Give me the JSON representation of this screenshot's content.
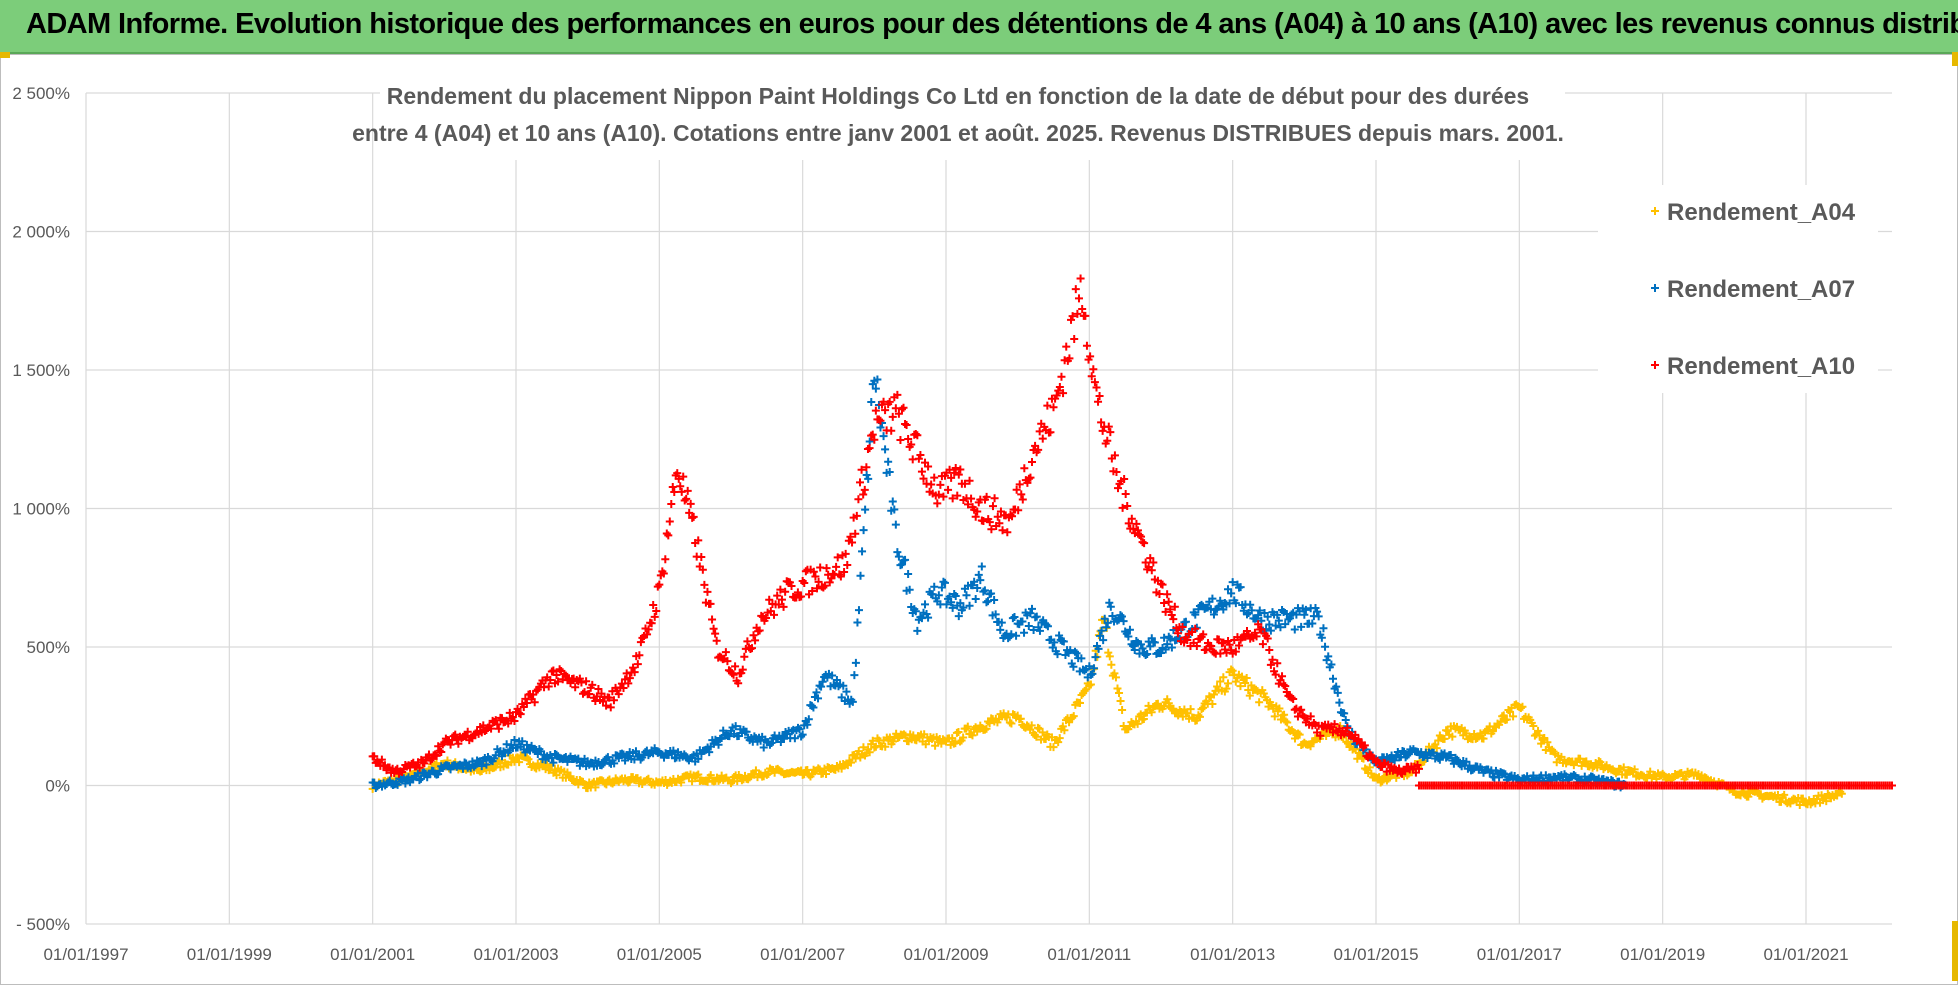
{
  "header": {
    "title": "ADAM Informe. Evolution historique des performances en euros pour des détentions de 4 ans (A04) à 10 ans (A10) avec les revenus connus distribués"
  },
  "chart_data": {
    "type": "scatter",
    "title_lines": [
      "Rendement du placement Nippon Paint Holdings Co Ltd en fonction de la date de début pour des durées",
      "entre 4 (A04) et 10 ans (A10). Cotations entre janv 2001 et août. 2025. Revenus DISTRIBUES depuis mars. 2001."
    ],
    "xlabel": "",
    "ylabel": "",
    "x_ticks": [
      "01/01/1997",
      "01/01/1999",
      "01/01/2001",
      "01/01/2003",
      "01/01/2005",
      "01/01/2007",
      "01/01/2009",
      "01/01/2011",
      "01/01/2013",
      "01/01/2015",
      "01/01/2017",
      "01/01/2019",
      "01/01/2021"
    ],
    "y_ticks": [
      "- 500%",
      "0%",
      "500%",
      "1 000%",
      "1 500%",
      "2 000%",
      "2 500%"
    ],
    "xlim": [
      1997.0,
      2022.2
    ],
    "ylim": [
      -500,
      2500
    ],
    "grid": true,
    "legend_position": "top-right",
    "colors": {
      "Rendement_A04": "#ffc000",
      "Rendement_A07": "#0070c0",
      "Rendement_A10": "#ff0000"
    },
    "series": [
      {
        "name": "Rendement_A04",
        "x": [
          2001.0,
          2001.5,
          2002.0,
          2002.5,
          2003.0,
          2003.5,
          2004.0,
          2004.5,
          2005.0,
          2005.5,
          2006.0,
          2006.5,
          2007.0,
          2007.5,
          2008.0,
          2008.5,
          2009.0,
          2009.5,
          2010.0,
          2010.5,
          2011.0,
          2011.2,
          2011.5,
          2012.0,
          2012.5,
          2013.0,
          2013.5,
          2014.0,
          2014.5,
          2015.0,
          2015.5,
          2016.0,
          2016.5,
          2017.0,
          2017.5,
          2018.0,
          2018.5,
          2019.0,
          2019.5,
          2020.0,
          2020.5,
          2021.0,
          2021.5
        ],
        "y": [
          0,
          30,
          80,
          50,
          100,
          60,
          0,
          20,
          10,
          30,
          20,
          50,
          40,
          60,
          150,
          180,
          150,
          220,
          250,
          150,
          350,
          600,
          200,
          300,
          250,
          400,
          300,
          150,
          200,
          20,
          50,
          200,
          180,
          280,
          100,
          80,
          50,
          30,
          40,
          -20,
          -40,
          -60,
          -30
        ]
      },
      {
        "name": "Rendement_A07",
        "x": [
          2001.0,
          2001.5,
          2002.0,
          2002.5,
          2003.0,
          2003.5,
          2004.0,
          2004.5,
          2005.0,
          2005.5,
          2006.0,
          2006.5,
          2007.0,
          2007.3,
          2007.7,
          2008.0,
          2008.3,
          2008.6,
          2008.9,
          2009.2,
          2009.5,
          2009.8,
          2010.2,
          2010.6,
          2011.0,
          2011.3,
          2011.7,
          2012.0,
          2012.5,
          2013.0,
          2013.4,
          2013.8,
          2014.2,
          2014.6,
          2015.0,
          2015.5,
          2016.0,
          2016.5,
          2017.0,
          2017.5,
          2018.0,
          2018.5
        ],
        "y": [
          0,
          20,
          60,
          80,
          150,
          100,
          80,
          100,
          120,
          100,
          200,
          150,
          200,
          400,
          300,
          1500,
          900,
          600,
          700,
          650,
          750,
          550,
          600,
          500,
          400,
          650,
          500,
          500,
          600,
          700,
          600,
          600,
          600,
          200,
          80,
          120,
          100,
          50,
          20,
          30,
          20,
          0
        ]
      },
      {
        "name": "Rendement_A10",
        "x": [
          2001.0,
          2001.3,
          2001.7,
          2002.0,
          2002.5,
          2003.0,
          2003.5,
          2004.0,
          2004.3,
          2004.7,
          2005.0,
          2005.25,
          2005.5,
          2005.8,
          2006.1,
          2006.4,
          2006.8,
          2007.2,
          2007.6,
          2008.0,
          2008.3,
          2008.6,
          2008.9,
          2009.2,
          2009.5,
          2009.9,
          2010.2,
          2010.5,
          2010.9,
          2011.1,
          2011.4,
          2011.7,
          2012.0,
          2012.3,
          2012.7,
          2013.0,
          2013.4,
          2013.8,
          2014.2,
          2014.6,
          2015.0,
          2015.3,
          2015.6
        ],
        "y": [
          100,
          50,
          80,
          150,
          200,
          250,
          400,
          350,
          300,
          450,
          700,
          1150,
          900,
          500,
          400,
          600,
          700,
          750,
          800,
          1300,
          1350,
          1200,
          1050,
          1100,
          1000,
          950,
          1200,
          1350,
          1800,
          1400,
          1100,
          900,
          700,
          550,
          500,
          500,
          550,
          300,
          200,
          200,
          80,
          50,
          60
        ]
      }
    ],
    "flat_segment": {
      "series": "Rendement_A10",
      "x_start": 2015.6,
      "x_end": 2022.2,
      "y": 0
    }
  }
}
